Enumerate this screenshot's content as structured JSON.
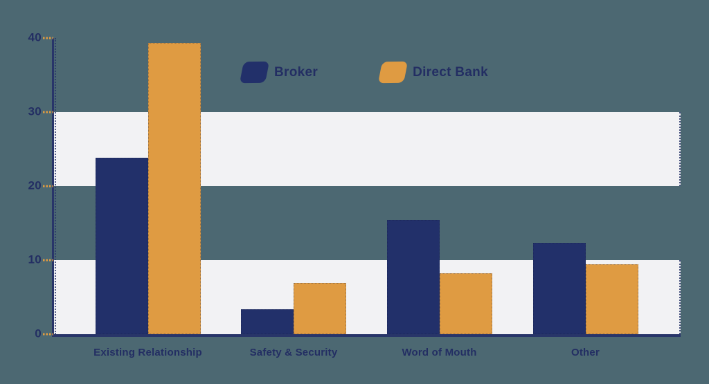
{
  "chart_data": {
    "type": "bar",
    "title": "",
    "categories": [
      "Existing Relationship",
      "Safety & Security",
      "Word of Mouth",
      "Other"
    ],
    "series": [
      {
        "name": "Broker",
        "color": "#22306A",
        "values": [
          23.8,
          3.4,
          15.4,
          12.3
        ]
      },
      {
        "name": "Direct Bank",
        "color": "#DF9B42",
        "values": [
          39.3,
          6.9,
          8.2,
          9.4
        ]
      }
    ],
    "ylim": [
      0,
      40
    ],
    "yticks": [
      40,
      30,
      20,
      10,
      0
    ],
    "xlabel": "",
    "ylabel": "",
    "legend_position": "top-center",
    "grid": "alternating horizontal bands",
    "band_ranges": [
      [
        20,
        30
      ],
      [
        0,
        10
      ]
    ]
  },
  "colors": {
    "background": "#4C6872",
    "band": "#F2F2F4",
    "axis": "#283569",
    "tick_dash": "#DF9B42",
    "label_text": "#232E63"
  }
}
